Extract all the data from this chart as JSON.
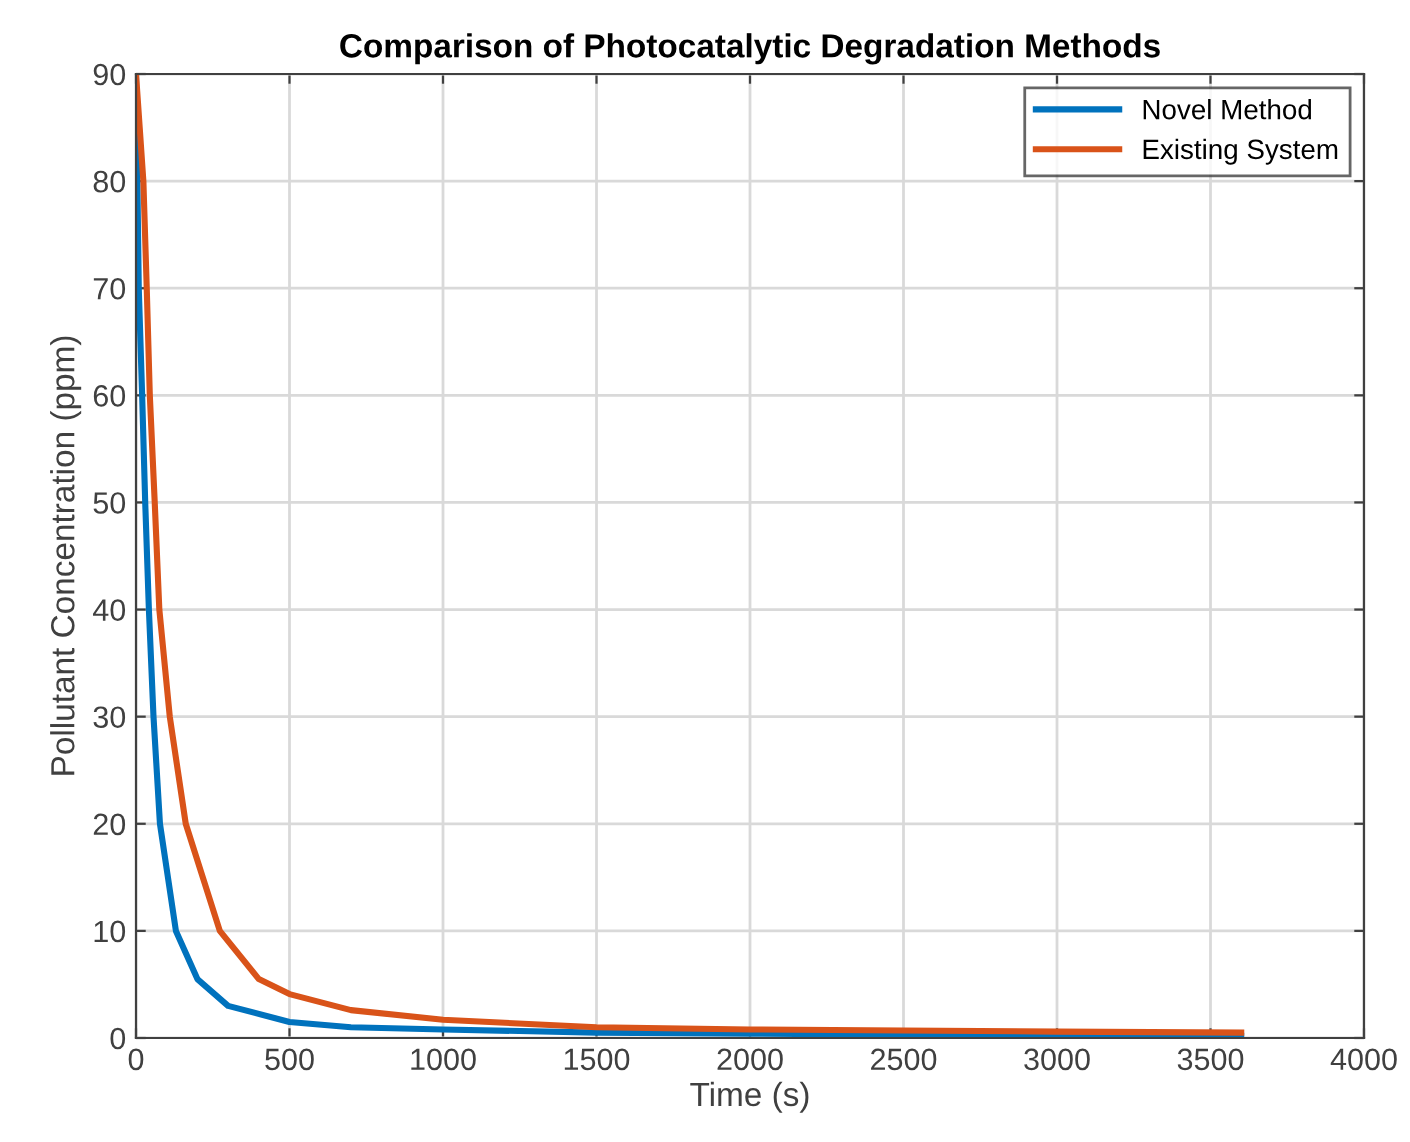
{
  "chart_data": {
    "type": "line",
    "title": "Comparison of Photocatalytic Degradation Methods",
    "xlabel": "Time (s)",
    "ylabel": "Pollutant Concentration (ppm)",
    "xlim": [
      0,
      4000
    ],
    "ylim": [
      0,
      90
    ],
    "xticks": [
      0,
      500,
      1000,
      1500,
      2000,
      2500,
      3000,
      3500,
      4000
    ],
    "yticks": [
      0,
      10,
      20,
      30,
      40,
      50,
      60,
      70,
      80,
      90
    ],
    "grid": true,
    "legend": "top right",
    "series": [
      {
        "name": "Novel Method",
        "color": "#0072bd",
        "x": [
          0,
          9,
          20,
          30,
          42,
          57,
          78,
          130,
          200,
          300,
          500,
          700,
          1000,
          1500,
          2000,
          2500,
          3000,
          3600
        ],
        "values": [
          90,
          70,
          60,
          50,
          40,
          30,
          20,
          10,
          5.5,
          3,
          1.5,
          1,
          0.8,
          0.5,
          0.4,
          0.3,
          0.25,
          0.2
        ]
      },
      {
        "name": "Existing System",
        "color": "#d95319",
        "x": [
          0,
          12,
          24,
          35,
          45,
          61,
          76,
          110,
          162,
          273,
          400,
          500,
          700,
          1000,
          1500,
          2000,
          2500,
          3000,
          3600
        ],
        "values": [
          90,
          85,
          80,
          70,
          60,
          50,
          40,
          30,
          20,
          10,
          5.5,
          4.1,
          2.6,
          1.7,
          1,
          0.8,
          0.7,
          0.6,
          0.5
        ]
      }
    ]
  }
}
